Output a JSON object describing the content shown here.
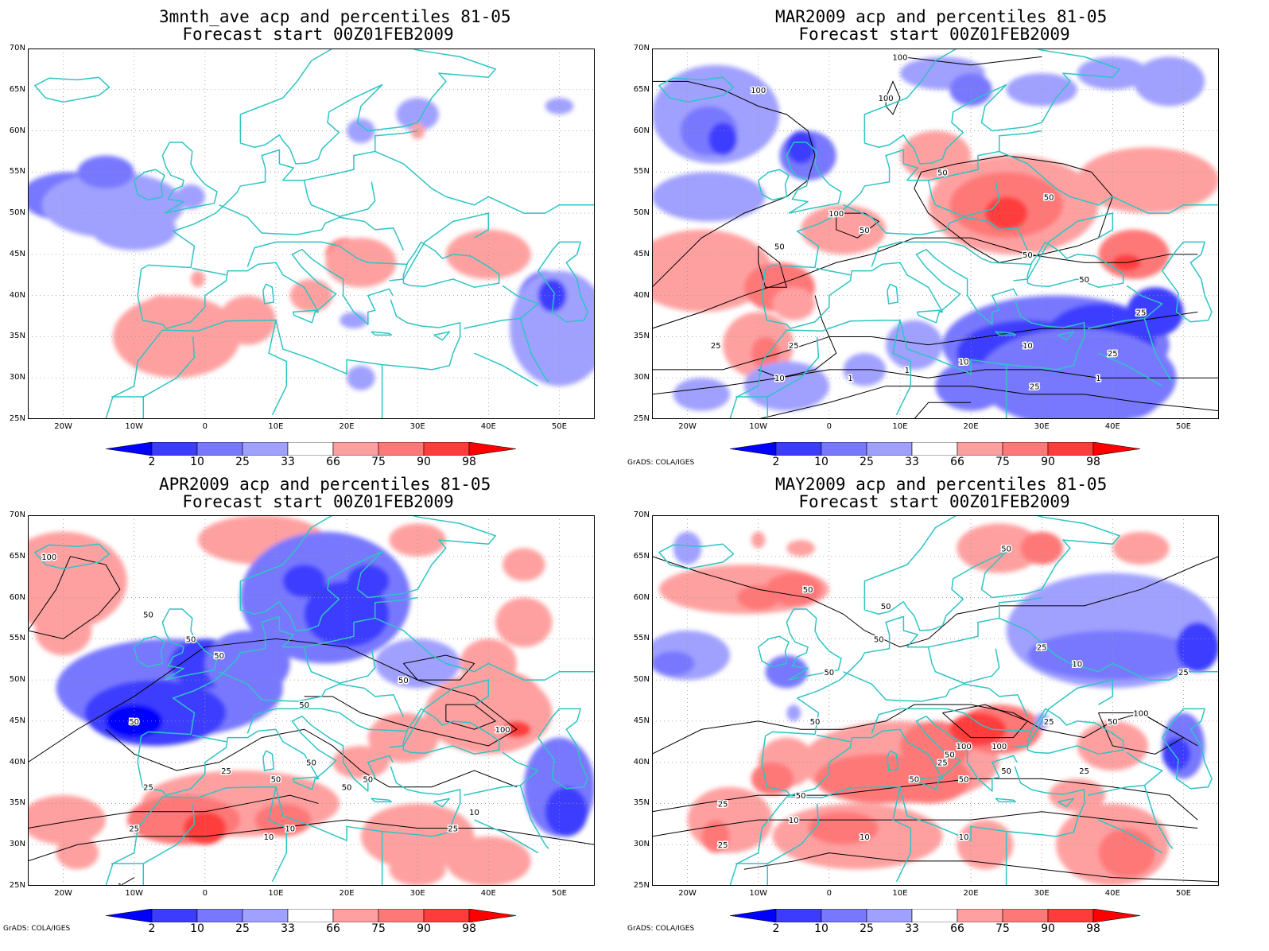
{
  "panels": [
    {
      "title_line1": "3mnth_ave acp and percentiles 81-05",
      "title_line2": "Forecast start 00Z01FEB2009",
      "credit": ""
    },
    {
      "title_line1": "MAR2009 acp and percentiles 81-05",
      "title_line2": "Forecast start 00Z01FEB2009",
      "credit": "GrADS: COLA/IGES"
    },
    {
      "title_line1": "APR2009 acp and percentiles 81-05",
      "title_line2": "Forecast start 00Z01FEB2009",
      "credit": "GrADS: COLA/IGES"
    },
    {
      "title_line1": "MAY2009 acp and percentiles 81-05",
      "title_line2": "Forecast start 00Z01FEB2009",
      "credit": "GrADS: COLA/IGES"
    }
  ],
  "lat_labels": [
    "70N",
    "65N",
    "60N",
    "55N",
    "50N",
    "45N",
    "40N",
    "35N",
    "30N",
    "25N"
  ],
  "lon_labels": [
    "20W",
    "10W",
    "0",
    "10E",
    "20E",
    "30E",
    "40E",
    "50E"
  ],
  "colorbar": {
    "labels": [
      "2",
      "10",
      "25",
      "33",
      "66",
      "75",
      "90",
      "98"
    ],
    "colors": [
      "#0000ff",
      "#3c3cff",
      "#7878ff",
      "#a0a0ff",
      "#ffffff",
      "#ffa0a0",
      "#ff7878",
      "#ff3c3c",
      "#ff0000"
    ]
  },
  "colors": {
    "coast": "#2ec4c4",
    "contour": "#000000"
  },
  "contour_labels": {
    "mar": [
      "100",
      "100",
      "50",
      "50",
      "100",
      "100",
      "50",
      "50",
      "50",
      "25",
      "25",
      "10",
      "1",
      "1",
      "10",
      "10",
      "25",
      "50",
      "25",
      "25",
      "1"
    ],
    "apr": [
      "100",
      "50",
      "50",
      "50",
      "50",
      "50",
      "25",
      "50",
      "25",
      "50",
      "50",
      "10",
      "10",
      "25",
      "50",
      "100",
      "10",
      "1",
      "25",
      "50"
    ],
    "may": [
      "50",
      "50",
      "50",
      "50",
      "50",
      "50",
      "50",
      "100",
      "100",
      "50",
      "25",
      "50",
      "25",
      "25",
      "10",
      "50",
      "25",
      "50",
      "100",
      "25",
      "10",
      "25",
      "10",
      "50",
      "25",
      "10"
    ]
  }
}
